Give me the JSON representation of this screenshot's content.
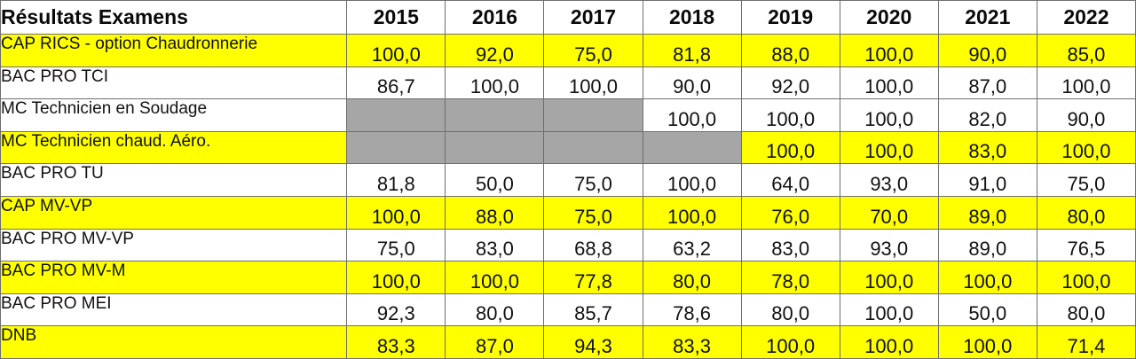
{
  "chart_data": {
    "type": "table",
    "title": "Résultats Examens",
    "columns": [
      "2015",
      "2016",
      "2017",
      "2018",
      "2019",
      "2020",
      "2021",
      "2022"
    ],
    "rows": [
      {
        "label": "CAP RICS - option Chaudronnerie",
        "highlight": true,
        "values": [
          "100,0",
          "92,0",
          "75,0",
          "81,8",
          "88,0",
          "100,0",
          "90,0",
          "85,0"
        ]
      },
      {
        "label": "BAC PRO TCI",
        "highlight": false,
        "values": [
          "86,7",
          "100,0",
          "100,0",
          "90,0",
          "92,0",
          "100,0",
          "87,0",
          "100,0"
        ]
      },
      {
        "label": "MC Technicien en Soudage",
        "highlight": false,
        "values": [
          null,
          null,
          null,
          "100,0",
          "100,0",
          "100,0",
          "82,0",
          "90,0"
        ]
      },
      {
        "label": "MC Technicien chaud. Aéro.",
        "highlight": true,
        "values": [
          null,
          null,
          null,
          null,
          "100,0",
          "100,0",
          "83,0",
          "100,0"
        ]
      },
      {
        "label": "BAC PRO TU",
        "highlight": false,
        "values": [
          "81,8",
          "50,0",
          "75,0",
          "100,0",
          "64,0",
          "93,0",
          "91,0",
          "75,0"
        ]
      },
      {
        "label": "CAP MV-VP",
        "highlight": true,
        "values": [
          "100,0",
          "88,0",
          "75,0",
          "100,0",
          "76,0",
          "70,0",
          "89,0",
          "80,0"
        ]
      },
      {
        "label": "BAC PRO MV-VP",
        "highlight": false,
        "values": [
          "75,0",
          "83,0",
          "68,8",
          "63,2",
          "83,0",
          "93,0",
          "89,0",
          "76,5"
        ]
      },
      {
        "label": "BAC PRO MV-M",
        "highlight": true,
        "values": [
          "100,0",
          "100,0",
          "77,8",
          "80,0",
          "78,0",
          "100,0",
          "100,0",
          "100,0"
        ]
      },
      {
        "label": "BAC PRO MEI",
        "highlight": false,
        "values": [
          "92,3",
          "80,0",
          "85,7",
          "78,6",
          "80,0",
          "100,0",
          "50,0",
          "80,0"
        ]
      },
      {
        "label": "DNB",
        "highlight": true,
        "values": [
          "83,3",
          "87,0",
          "94,3",
          "83,3",
          "100,0",
          "100,0",
          "100,0",
          "71,4"
        ]
      }
    ]
  },
  "colors": {
    "highlight_row": "#ffff00",
    "plain_row": "#ffffff",
    "unavailable_cell": "#a6a6a6"
  }
}
